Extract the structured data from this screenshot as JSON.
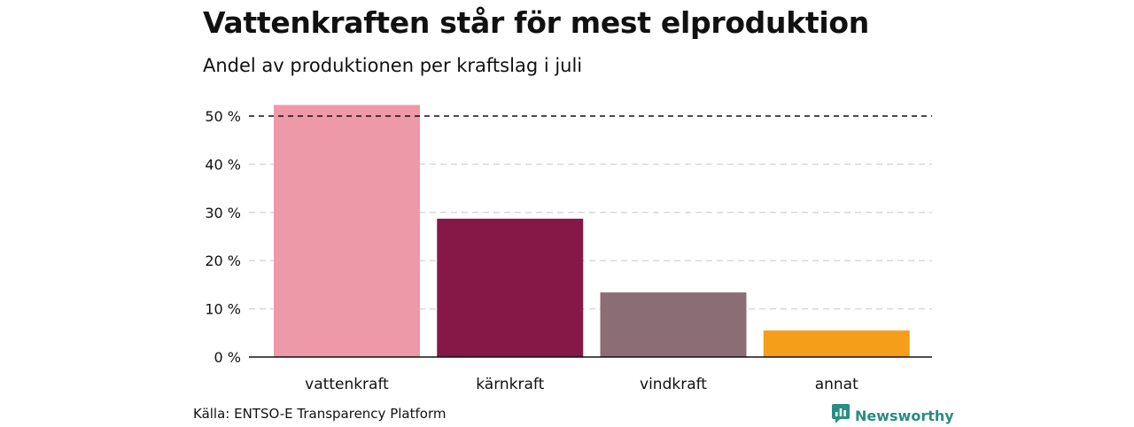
{
  "title": "Vattenkraften står för mest elproduktion",
  "subtitle": "Andel av produktionen per kraftslag i juli",
  "source": "Källa: ENTSO-E Transparency Platform",
  "brand": {
    "name": "Newsworthy",
    "icon": "bar-chart-icon",
    "color": "#2a8c84"
  },
  "chart_data": {
    "type": "bar",
    "categories": [
      "vattenkraft",
      "kärnkraft",
      "vindkraft",
      "annat"
    ],
    "values": [
      52.3,
      28.7,
      13.4,
      5.5
    ],
    "colors": [
      "#ee99a8",
      "#861848",
      "#8b6e75",
      "#f59e1a"
    ],
    "ylim": [
      0,
      50
    ],
    "yticks": [
      0,
      10,
      20,
      30,
      40,
      50
    ],
    "ytick_labels": [
      "0 %",
      "10 %",
      "20 %",
      "30 %",
      "40 %",
      "50 %"
    ],
    "reference_line": 50,
    "grid": true
  }
}
